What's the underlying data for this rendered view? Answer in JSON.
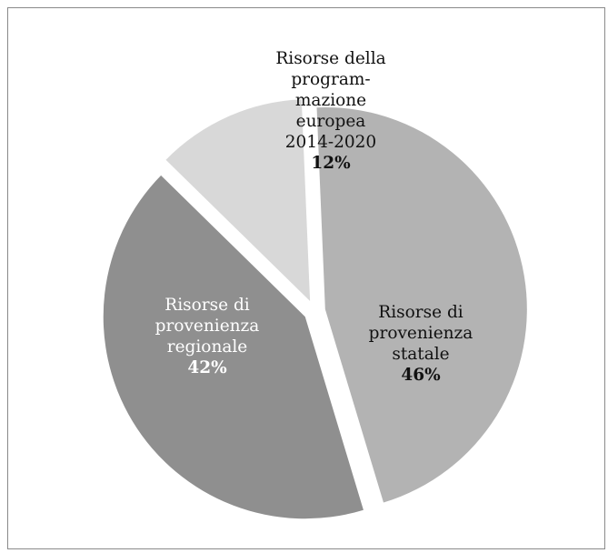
{
  "chart_data": {
    "type": "pie",
    "title": "",
    "slices": [
      {
        "label_lines": [
          "Risorse della",
          "program-",
          "mazione",
          "europea",
          "2014-2020"
        ],
        "label": "Risorse della programmazione europea 2014-2020",
        "value": 12,
        "value_label": "12%",
        "color": "#d8d8d8",
        "exploded": true
      },
      {
        "label_lines": [
          "Risorse di",
          "provenienza",
          "statale"
        ],
        "label": "Risorse di provenienza statale",
        "value": 46,
        "value_label": "46%",
        "color": "#b3b3b3",
        "exploded": true
      },
      {
        "label_lines": [
          "Risorse di",
          "provenienza",
          "regionale"
        ],
        "label": "Risorse di provenienza regionale",
        "value": 42,
        "value_label": "42%",
        "color": "#8f8f8f",
        "exploded": true
      }
    ]
  }
}
